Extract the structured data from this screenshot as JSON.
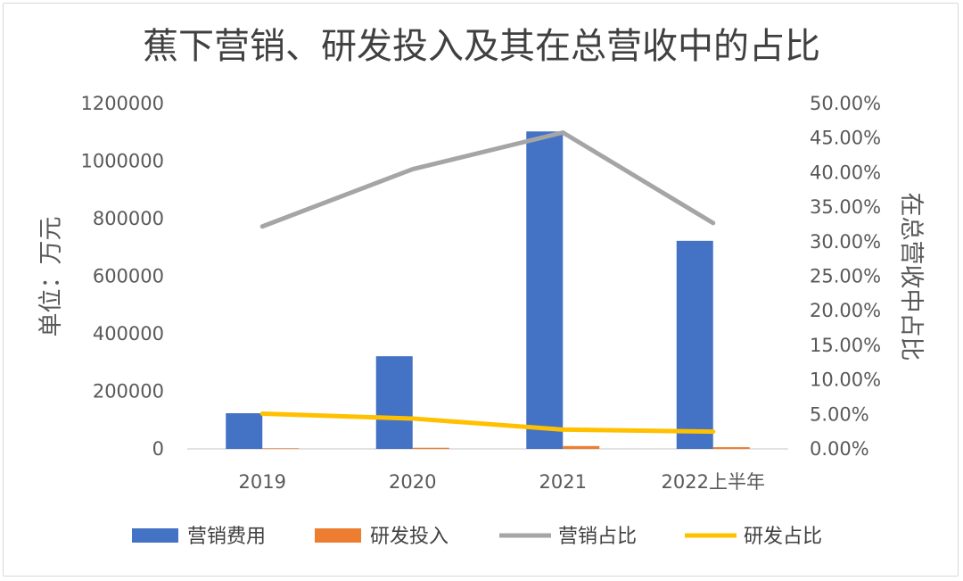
{
  "chart_data": {
    "type": "bar",
    "title": "蕉下营销、研发投入及其在总营收中的占比",
    "categories": [
      "2019",
      "2020",
      "2021",
      "2022上半年"
    ],
    "ylabel": "单位：万元",
    "y2label": "在总营收中占比",
    "ylim": [
      0,
      1200000
    ],
    "y2lim": [
      0,
      0.5
    ],
    "y_ticks": [
      "0",
      "200000",
      "400000",
      "600000",
      "800000",
      "1000000",
      "1200000"
    ],
    "y2_ticks": [
      "0.00%",
      "5.00%",
      "10.00%",
      "15.00%",
      "20.00%",
      "25.00%",
      "30.00%",
      "35.00%",
      "40.00%",
      "45.00%",
      "50.00%"
    ],
    "series": [
      {
        "name": "营销费用",
        "kind": "bar",
        "axis": "left",
        "color": "#4472C4",
        "values": [
          124000,
          322000,
          1103000,
          723000
        ]
      },
      {
        "name": "研发投入",
        "kind": "bar",
        "axis": "left",
        "color": "#ED7D31",
        "values": [
          2000,
          4000,
          10000,
          6000
        ]
      },
      {
        "name": "营销占比",
        "kind": "line",
        "axis": "right",
        "color": "#A5A5A5",
        "values": [
          0.322,
          0.405,
          0.458,
          0.327
        ]
      },
      {
        "name": "研发占比",
        "kind": "line",
        "axis": "right",
        "color": "#FFC000",
        "values": [
          0.051,
          0.044,
          0.028,
          0.025
        ]
      }
    ],
    "grid": false,
    "legend_position": "bottom"
  }
}
